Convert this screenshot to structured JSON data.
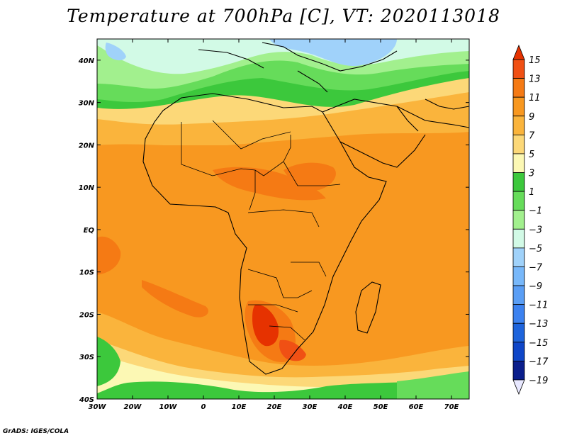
{
  "title": "Temperature at 700hPa [C], VT: 2020113018",
  "credit": "GrADS: IGES/COLA",
  "map": {
    "lon_range": [
      -30,
      75
    ],
    "lat_range": [
      -40,
      45
    ],
    "lon_ticks": [
      "30W",
      "20W",
      "10W",
      "0",
      "10E",
      "20E",
      "30E",
      "40E",
      "50E",
      "60E",
      "70E"
    ],
    "lat_ticks": [
      "40N",
      "30N",
      "20N",
      "10N",
      "EQ",
      "10S",
      "20S",
      "30S",
      "40S"
    ]
  },
  "colorbar": {
    "labels": [
      "15",
      "13",
      "11",
      "9",
      "7",
      "5",
      "3",
      "1",
      "−1",
      "−3",
      "−5",
      "−7",
      "−9",
      "−11",
      "−13",
      "−15",
      "−17",
      "−19"
    ],
    "colors": [
      "#e63200",
      "#f05014",
      "#f57a14",
      "#f89820",
      "#fab43c",
      "#fcd878",
      "#fcf8b4",
      "#3cc83c",
      "#66dc5a",
      "#a2f08e",
      "#d2fae6",
      "#a0d2fa",
      "#78b8fa",
      "#5a9ef5",
      "#3c82f0",
      "#1e64dc",
      "#0f46c8",
      "#0a1e8c",
      "#e8e8ff"
    ]
  }
}
